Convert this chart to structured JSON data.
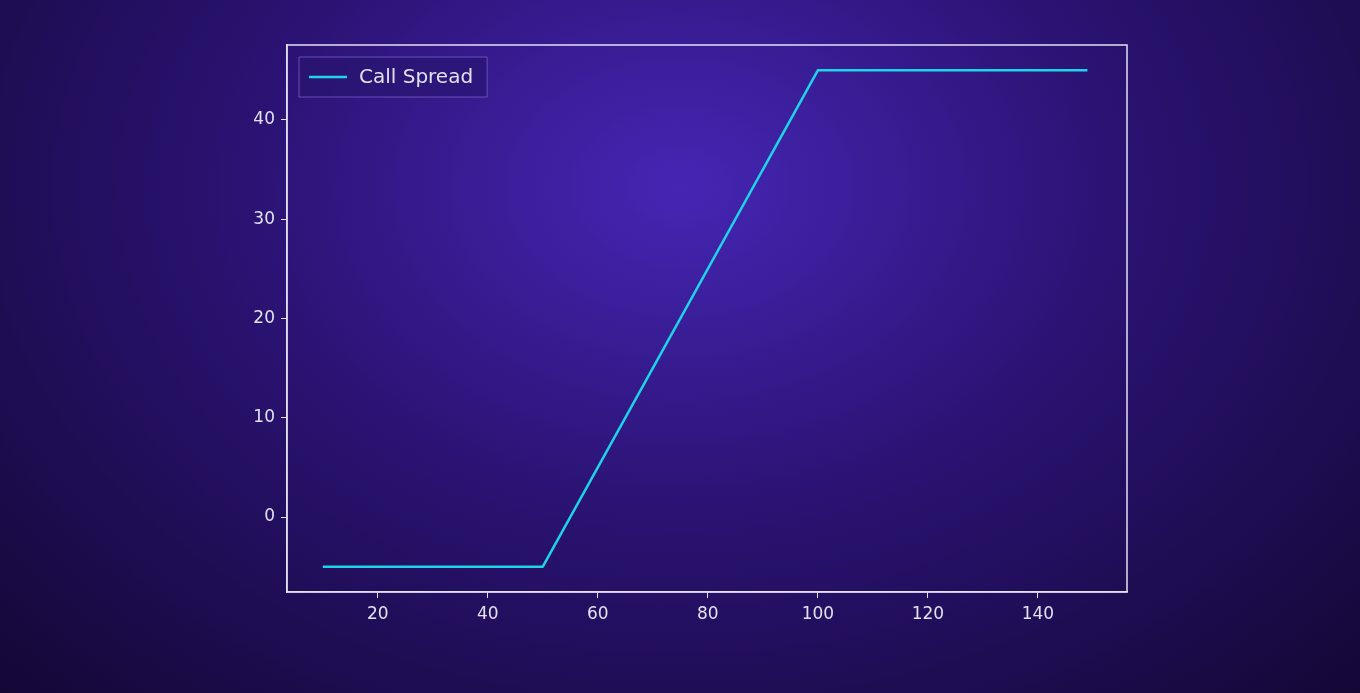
{
  "chart_data": {
    "type": "line",
    "x": [
      10,
      50,
      100,
      149
    ],
    "series": [
      {
        "name": "Call Spread",
        "color": "#1fd3e8",
        "values": [
          -5,
          -5,
          45,
          45
        ]
      }
    ],
    "xlim": [
      3.5,
      156.2
    ],
    "xticks": [
      20,
      40,
      60,
      80,
      100,
      120,
      140
    ],
    "ylim": [
      -7.55,
      47.55
    ],
    "yticks": [
      0,
      10,
      20,
      30,
      40
    ],
    "grid": false,
    "legend": "top left",
    "line_style": "solid",
    "marker": "none"
  }
}
